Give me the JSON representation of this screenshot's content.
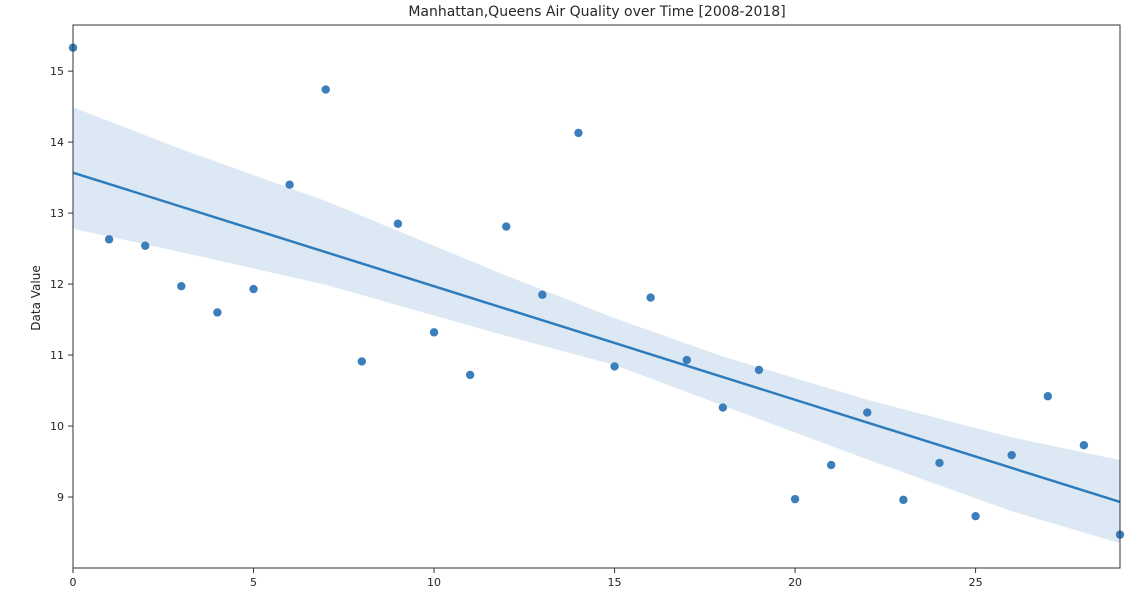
{
  "chart_data": {
    "type": "scatter",
    "title": "Manhattan,Queens Air Quality over Time [2008-2018]",
    "xlabel": "",
    "ylabel": "Data Value",
    "xlim": [
      0,
      29
    ],
    "ylim": [
      8.0,
      15.65
    ],
    "x_ticks": [
      0,
      5,
      10,
      15,
      20,
      25
    ],
    "y_ticks": [
      9,
      10,
      11,
      12,
      13,
      14,
      15
    ],
    "grid": false,
    "legend": "none",
    "points": {
      "x": [
        0,
        1,
        2,
        3,
        4,
        5,
        6,
        7,
        8,
        9,
        10,
        11,
        12,
        13,
        14,
        15,
        16,
        17,
        18,
        19,
        20,
        21,
        22,
        23,
        24,
        25,
        26,
        27,
        28,
        29
      ],
      "y": [
        15.33,
        12.63,
        12.54,
        11.97,
        11.6,
        11.93,
        13.4,
        14.74,
        10.91,
        12.85,
        11.32,
        10.72,
        12.81,
        11.85,
        14.13,
        10.84,
        11.81,
        10.93,
        10.26,
        10.79,
        8.97,
        9.45,
        10.19,
        8.96,
        9.48,
        8.73,
        9.59,
        10.42,
        9.73,
        8.47
      ]
    },
    "regression": {
      "x": [
        0,
        29
      ],
      "y": [
        13.57,
        8.93
      ]
    },
    "confidence_band": {
      "x": [
        0,
        3,
        7,
        12,
        15,
        18,
        22,
        26,
        29
      ],
      "lower": [
        12.78,
        12.45,
        11.99,
        11.27,
        10.86,
        10.29,
        9.53,
        8.8,
        8.35
      ],
      "upper": [
        14.49,
        13.9,
        13.17,
        12.12,
        11.52,
        10.98,
        10.37,
        9.84,
        9.52
      ]
    },
    "colors": {
      "points": "#3a7fbb",
      "line": "#2f7cbd",
      "band": "#dce8f4"
    }
  }
}
